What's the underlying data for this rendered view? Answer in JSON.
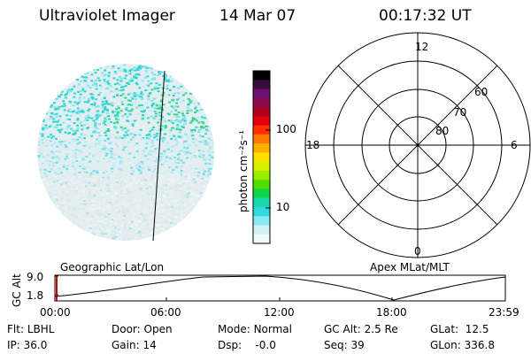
{
  "header": {
    "instrument": "Ultraviolet Imager",
    "date": "14 Mar 07",
    "time": "00:17:32 UT"
  },
  "colorbar": {
    "unit_label": "photon cm⁻²s⁻¹",
    "ticks": [
      "100",
      "10"
    ],
    "colors": [
      "#000000",
      "#3a0a3a",
      "#6a1070",
      "#8a0a4a",
      "#b00020",
      "#e00010",
      "#ff3000",
      "#ff7a00",
      "#ffb000",
      "#ffe000",
      "#d8f000",
      "#9aec00",
      "#50e000",
      "#10d44a",
      "#18d8b0",
      "#30d8e0",
      "#8ae8f0",
      "#d0f2f6",
      "#f0f8fa"
    ]
  },
  "polar": {
    "mlt_labels": [
      "12",
      "18",
      "6",
      "0"
    ],
    "lat_labels": [
      "60",
      "70",
      "80"
    ]
  },
  "labels": {
    "left_projection": "Geographic Lat/Lon",
    "right_projection": "Apex MLat/MLT"
  },
  "altitude_plot": {
    "axis_label": "GC Alt",
    "y_max": "9.0",
    "y_min": "1.8",
    "time_ticks": [
      "00:00",
      "06:00",
      "12:00",
      "18:00",
      "23:59"
    ]
  },
  "status": {
    "flt_label": "Flt:",
    "flt_value": "LBHL",
    "ip_label": "IP:",
    "ip_value": "36.0",
    "door_label": "Door:",
    "door_value": "Open",
    "gain_label": "Gain:",
    "gain_value": "14",
    "mode_label": "Mode:",
    "mode_value": "Normal",
    "dsp_label": "Dsp:",
    "dsp_value": "-0.0",
    "gcalt_label": "GC Alt:",
    "gcalt_value": "2.5 Re",
    "seq_label": "Seq:",
    "seq_value": "39",
    "glat_label": "GLat:",
    "glat_value": "12.5",
    "glon_label": "GLon:",
    "glon_value": "336.8"
  }
}
